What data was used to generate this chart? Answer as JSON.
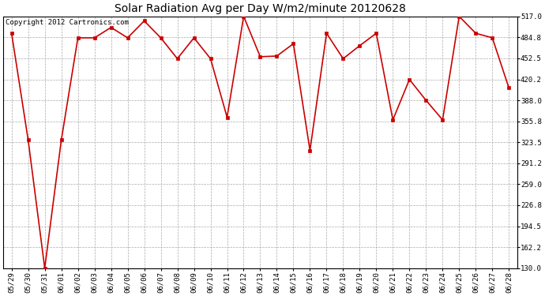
{
  "title": "Solar Radiation Avg per Day W/m2/minute 20120628",
  "copyright": "Copyright 2012 Cartronics.com",
  "background_color": "#ffffff",
  "plot_bg_color": "#ffffff",
  "line_color": "#cc0000",
  "marker": "s",
  "marker_color": "#cc0000",
  "dates": [
    "05/29",
    "05/30",
    "05/31",
    "06/01",
    "06/02",
    "06/03",
    "06/04",
    "06/05",
    "06/06",
    "06/07",
    "06/08",
    "06/09",
    "06/10",
    "06/11",
    "06/12",
    "06/13",
    "06/14",
    "06/15",
    "06/16",
    "06/17",
    "06/18",
    "06/19",
    "06/20",
    "06/21",
    "06/22",
    "06/23",
    "06/24",
    "06/25",
    "06/26",
    "06/27",
    "06/28"
  ],
  "values": [
    491,
    327,
    130,
    327,
    484,
    484,
    500,
    484,
    510,
    484,
    452,
    484,
    452,
    362,
    517,
    455,
    456,
    475,
    311,
    491,
    452,
    472,
    491,
    358,
    420,
    388,
    358,
    517,
    491,
    484,
    407
  ],
  "ylim": [
    130,
    517
  ],
  "yticks": [
    130.0,
    162.2,
    194.5,
    226.8,
    259.0,
    291.2,
    323.5,
    355.8,
    388.0,
    420.2,
    452.5,
    484.8,
    517.0
  ],
  "title_fontsize": 10,
  "tick_fontsize": 6.5,
  "copyright_fontsize": 6.5
}
